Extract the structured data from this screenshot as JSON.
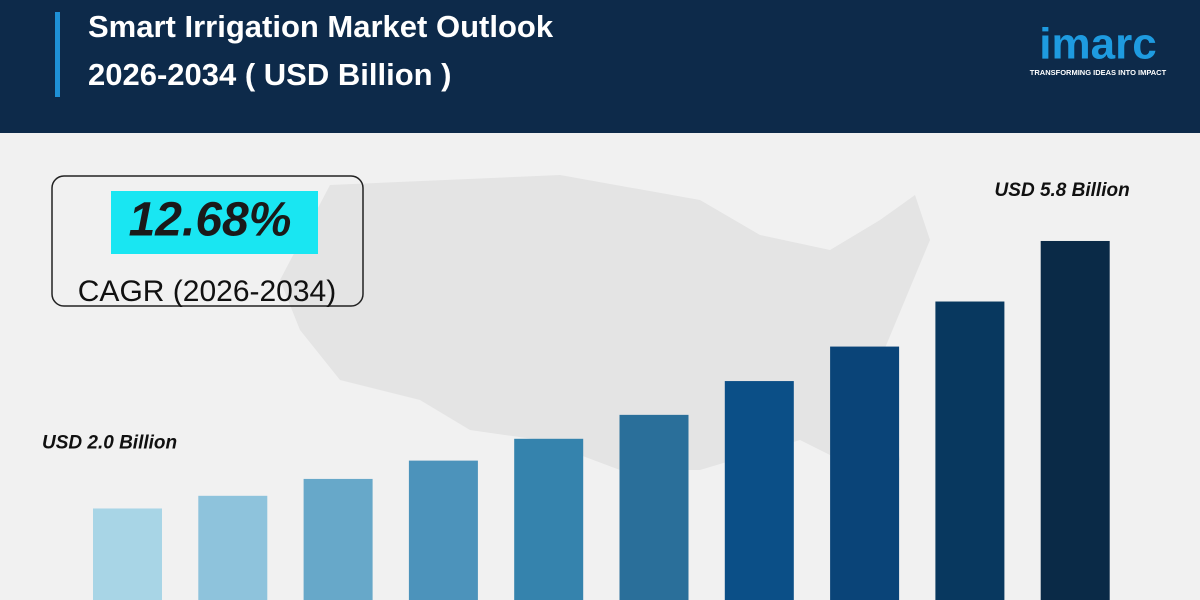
{
  "chart_data": {
    "type": "bar",
    "title": [
      "Smart Irrigation Market Outlook",
      "2026-2034 ( USD Billion )"
    ],
    "logo": {
      "name": "imarc",
      "tagline": "TRANSFORMING IDEAS INTO IMPACT"
    },
    "cagr": {
      "value": "12.68%",
      "label": "CAGR (2026-2034)"
    },
    "categories": [
      null,
      null,
      null,
      null,
      null,
      null,
      null,
      null,
      null,
      null
    ],
    "values": [
      2.0,
      2.18,
      2.42,
      2.68,
      2.99,
      3.33,
      3.81,
      4.3,
      4.94,
      5.8
    ],
    "value_labels": [
      "USD 2.0 Billion",
      null,
      null,
      null,
      null,
      null,
      null,
      null,
      null,
      "USD 5.8 Billion"
    ],
    "colors": [
      "#a8d5e6",
      "#8ec3dc",
      "#67a8c9",
      "#4c93bb",
      "#3583ad",
      "#2a6f9a",
      "#0b4f87",
      "#0a4478",
      "#08385f",
      "#0a2a47"
    ],
    "ylim": [
      0.7,
      7
    ]
  }
}
